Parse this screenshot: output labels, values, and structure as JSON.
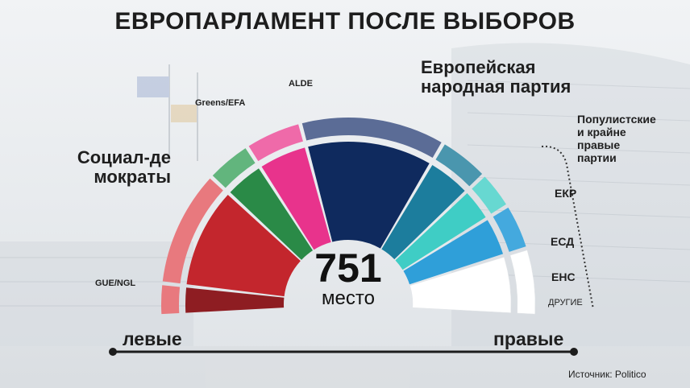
{
  "title": "ЕВРОПАРЛАМЕНТ ПОСЛЕ ВЫБОРОВ",
  "center": {
    "number": "751",
    "label": "место"
  },
  "axis": {
    "left": "левые",
    "right": "правые"
  },
  "source": "Источник: Politico",
  "colors": {
    "background": "#e9ecef",
    "axis_line": "#1d1d1d",
    "label_text": "#1f1f1f"
  },
  "chart_data": {
    "type": "pie",
    "variant": "parliament-semicircle",
    "total_seats": 751,
    "segments": [
      {
        "name": "GUE/NGL",
        "share": 0.051,
        "inner_color": "#8e1d22",
        "outer_color": "#e8797e"
      },
      {
        "name": "Социал-демократы",
        "share": 0.196,
        "inner_color": "#c3262d",
        "outer_color": "#e8797e"
      },
      {
        "name": "Greens/EFA",
        "share": 0.077,
        "inner_color": "#2a8a47",
        "outer_color": "#62b57d"
      },
      {
        "name": "ALDE",
        "share": 0.096,
        "inner_color": "#e8338c",
        "outer_color": "#ef6aa9"
      },
      {
        "name": "Европейская народная партия",
        "share": 0.244,
        "inner_color": "#0f2a5e",
        "outer_color": "#5b6c96"
      },
      {
        "name": "ЕКР",
        "share": 0.085,
        "inner_color": "#1c7d9d",
        "outer_color": "#4a96ae"
      },
      {
        "name": "ЕСД",
        "share": 0.064,
        "inner_color": "#3fcdc5",
        "outer_color": "#67d8d1"
      },
      {
        "name": "ЕНС",
        "share": 0.077,
        "inner_color": "#2f9fd9",
        "outer_color": "#44a9de"
      },
      {
        "name": "ДРУГИЕ",
        "share": 0.11,
        "inner_color": "#ffffff",
        "outer_color": "#ffffff"
      }
    ],
    "group_label": "Популистские и крайне правые партии",
    "legend_placement": "around-arc"
  }
}
